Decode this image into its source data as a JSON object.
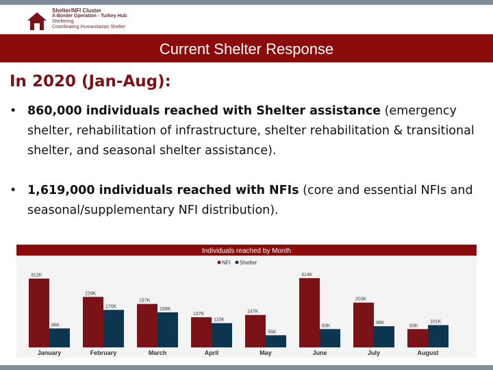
{
  "logo": {
    "line1": "Shelter/NFI Cluster",
    "line2": "X-Border Operation - Turkey Hub",
    "line3": "Sheltering.",
    "line4": "Coordinating Humanitarian Shelter"
  },
  "banner": {
    "title": "Current Shelter Response"
  },
  "heading": "In 2020 (Jan-Aug):",
  "bullets": [
    {
      "bold": "860,000 individuals reached with Shelter assistance",
      "rest": " (emergency shelter, rehabilitation of infrastructure, shelter rehabilitation & transitional shelter, and seasonal shelter assistance)."
    },
    {
      "bold": "1,619,000 individuals reached with NFIs",
      "rest": " (core and essential NFIs and seasonal/supplementary NFI distribution)."
    }
  ],
  "colors": {
    "nfi": "#7a1218",
    "shelter": "#0c3650",
    "banner": "#8b0a0a",
    "header_bar": "#8b0a0a"
  },
  "chart_data": {
    "type": "bar",
    "title": "Individuals reached by Month",
    "legend": [
      "NFI",
      "Shelter"
    ],
    "legend_position": "top",
    "categories": [
      "January",
      "February",
      "March",
      "April",
      "May",
      "June",
      "July",
      "August"
    ],
    "series": [
      {
        "name": "NFI",
        "values": [
          312,
          229,
          197,
          137,
          147,
          314,
          203,
          83
        ],
        "labels": [
          "312K",
          "229K",
          "197K",
          "137K",
          "147K",
          "314K",
          "203K",
          "83K"
        ]
      },
      {
        "name": "Shelter",
        "values": [
          86,
          170,
          159,
          110,
          55,
          83,
          96,
          101
        ],
        "labels": [
          "86K",
          "170K",
          "159K",
          "110K",
          "55K",
          "83K",
          "96K",
          "101K"
        ]
      }
    ],
    "ylim": [
      0,
      320
    ],
    "grid": false
  }
}
